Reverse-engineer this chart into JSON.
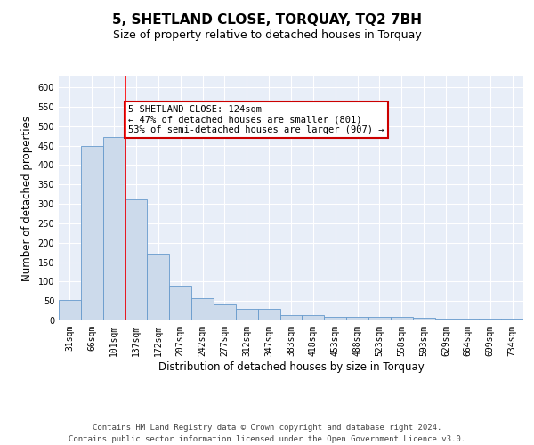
{
  "title": "5, SHETLAND CLOSE, TORQUAY, TQ2 7BH",
  "subtitle": "Size of property relative to detached houses in Torquay",
  "xlabel": "Distribution of detached houses by size in Torquay",
  "ylabel": "Number of detached properties",
  "categories": [
    "31sqm",
    "66sqm",
    "101sqm",
    "137sqm",
    "172sqm",
    "207sqm",
    "242sqm",
    "277sqm",
    "312sqm",
    "347sqm",
    "383sqm",
    "418sqm",
    "453sqm",
    "488sqm",
    "523sqm",
    "558sqm",
    "593sqm",
    "629sqm",
    "664sqm",
    "699sqm",
    "734sqm"
  ],
  "values": [
    52,
    450,
    472,
    312,
    172,
    89,
    57,
    42,
    29,
    29,
    14,
    14,
    10,
    10,
    10,
    10,
    8,
    4,
    4,
    4,
    4
  ],
  "bar_color": "#ccdaeb",
  "bar_edge_color": "#6699cc",
  "background_color": "#e8eef8",
  "grid_color": "#ffffff",
  "annotation_box_text": "5 SHETLAND CLOSE: 124sqm\n← 47% of detached houses are smaller (801)\n53% of semi-detached houses are larger (907) →",
  "annotation_box_color": "#ffffff",
  "annotation_box_edge_color": "#cc0000",
  "red_line_index": 2,
  "ylim": [
    0,
    630
  ],
  "yticks": [
    0,
    50,
    100,
    150,
    200,
    250,
    300,
    350,
    400,
    450,
    500,
    550,
    600
  ],
  "footer": "Contains HM Land Registry data © Crown copyright and database right 2024.\nContains public sector information licensed under the Open Government Licence v3.0.",
  "title_fontsize": 11,
  "subtitle_fontsize": 9,
  "xlabel_fontsize": 8.5,
  "ylabel_fontsize": 8.5,
  "tick_fontsize": 7,
  "footer_fontsize": 6.5
}
